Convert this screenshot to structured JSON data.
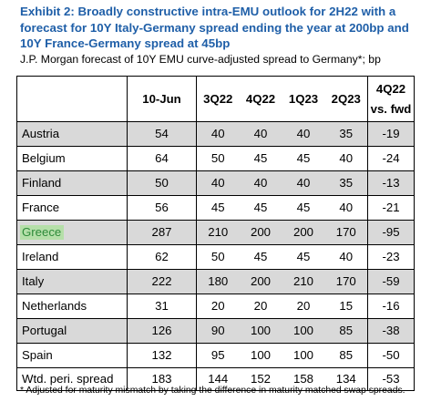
{
  "title_lines": [
    "Exhibit 2: Broadly constructive intra-EMU outlook for 2H22 with a",
    "forecast for 10Y Italy-Germany spread ending the year at 200bp and",
    "10Y France-Germany spread at 45bp"
  ],
  "subtitle": "J.P. Morgan forecast of 10Y EMU curve-adjusted spread to Germany*; bp",
  "table": {
    "headers": [
      "",
      "10-Jun",
      "3Q22",
      "4Q22",
      "1Q23",
      "2Q23"
    ],
    "last_header_lines": [
      "4Q22",
      "vs. fwd"
    ],
    "rows": [
      {
        "name": "Austria",
        "values": [
          "54",
          "40",
          "40",
          "40",
          "35",
          "-19"
        ],
        "shaded": true,
        "highlight": false
      },
      {
        "name": "Belgium",
        "values": [
          "64",
          "50",
          "45",
          "45",
          "40",
          "-24"
        ],
        "shaded": false,
        "highlight": false
      },
      {
        "name": "Finland",
        "values": [
          "50",
          "40",
          "40",
          "40",
          "35",
          "-13"
        ],
        "shaded": true,
        "highlight": false
      },
      {
        "name": "France",
        "values": [
          "56",
          "45",
          "45",
          "45",
          "40",
          "-21"
        ],
        "shaded": false,
        "highlight": false
      },
      {
        "name": "Greece",
        "values": [
          "287",
          "210",
          "200",
          "200",
          "170",
          "-95"
        ],
        "shaded": true,
        "highlight": true
      },
      {
        "name": "Ireland",
        "values": [
          "62",
          "50",
          "45",
          "45",
          "40",
          "-23"
        ],
        "shaded": false,
        "highlight": false
      },
      {
        "name": "Italy",
        "values": [
          "222",
          "180",
          "200",
          "210",
          "170",
          "-59"
        ],
        "shaded": true,
        "highlight": false
      },
      {
        "name": "Netherlands",
        "values": [
          "31",
          "20",
          "20",
          "20",
          "15",
          "-16"
        ],
        "shaded": false,
        "highlight": false
      },
      {
        "name": "Portugal",
        "values": [
          "126",
          "90",
          "100",
          "100",
          "85",
          "-38"
        ],
        "shaded": true,
        "highlight": false
      },
      {
        "name": "Spain",
        "values": [
          "132",
          "95",
          "100",
          "100",
          "85",
          "-50"
        ],
        "shaded": false,
        "highlight": false
      }
    ],
    "total_row": {
      "name": "Wtd. peri. spread",
      "values": [
        "183",
        "144",
        "152",
        "158",
        "134",
        "-53"
      ]
    }
  },
  "footnote": "* Adjusted for maturity mismatch by taking the difference in maturity matched swap spreads.",
  "colors": {
    "title": "#1f5fa8",
    "row_shade": "#d9d9d9",
    "highlight_bg": "#b5dfa9",
    "highlight_text": "#2e8b3a"
  }
}
